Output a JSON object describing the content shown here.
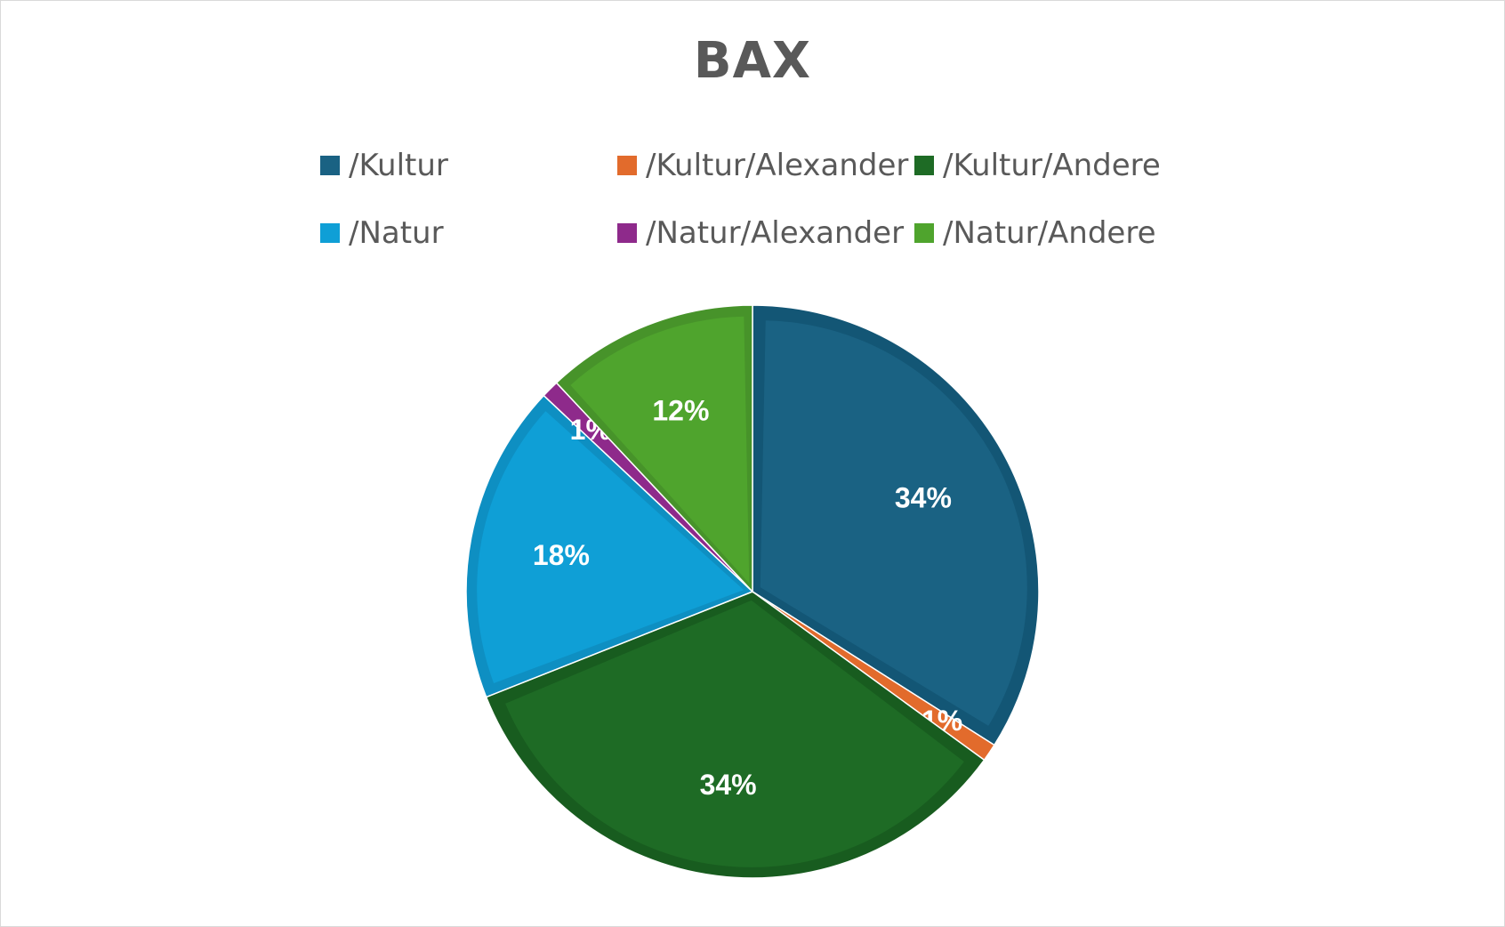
{
  "chart_data": {
    "type": "pie",
    "title": "BAX",
    "legend_position": "top",
    "categories": [
      "/Kultur",
      "/Kultur/Alexander",
      "/Kultur/Andere",
      "/Natur",
      "/Natur/Alexander",
      "/Natur/Andere"
    ],
    "values": [
      34,
      1,
      34,
      18,
      1,
      12
    ],
    "data_labels": [
      "34%",
      "1%",
      "34%",
      "18%",
      "1%",
      "12%"
    ],
    "colors": [
      "#1a6283",
      "#e26b2c",
      "#1e6b25",
      "#0f9fd6",
      "#8e2a8b",
      "#4fa42d"
    ],
    "edge_colors": [
      "#135675",
      "#e26b2c",
      "#185c1f",
      "#0e8fc2",
      "#8e2a8b",
      "#47932a"
    ]
  }
}
